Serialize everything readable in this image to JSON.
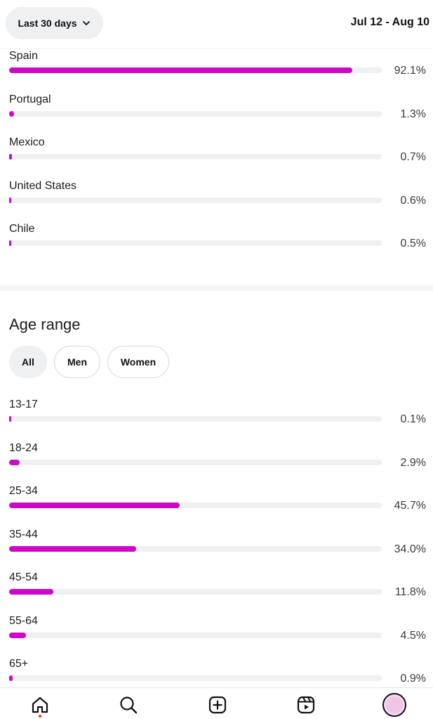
{
  "header": {
    "range_label": "Last 30 days",
    "date_range": "Jul 12 - Aug 10"
  },
  "countries": [
    {
      "label": "Spain",
      "value": "92.1%",
      "fraction": 0.921
    },
    {
      "label": "Portugal",
      "value": "1.3%",
      "fraction": 0.013
    },
    {
      "label": "Mexico",
      "value": "0.7%",
      "fraction": 0.007
    },
    {
      "label": "United States",
      "value": "0.6%",
      "fraction": 0.006
    },
    {
      "label": "Chile",
      "value": "0.5%",
      "fraction": 0.005
    }
  ],
  "age_section": {
    "title": "Age range",
    "filters": [
      "All",
      "Men",
      "Women"
    ],
    "selected_filter": "All"
  },
  "ages": [
    {
      "label": "13-17",
      "value": "0.1%",
      "fraction": 0.001
    },
    {
      "label": "18-24",
      "value": "2.9%",
      "fraction": 0.029
    },
    {
      "label": "25-34",
      "value": "45.7%",
      "fraction": 0.457
    },
    {
      "label": "35-44",
      "value": "34.0%",
      "fraction": 0.34
    },
    {
      "label": "45-54",
      "value": "11.8%",
      "fraction": 0.118
    },
    {
      "label": "55-64",
      "value": "4.5%",
      "fraction": 0.045
    },
    {
      "label": "65+",
      "value": "0.9%",
      "fraction": 0.009
    }
  ],
  "nav": {
    "items": [
      "home-icon",
      "search-icon",
      "create-icon",
      "reels-icon",
      "profile-avatar"
    ]
  },
  "colors": {
    "bar_fill": "#d007c6",
    "bar_track": "#eff0f2",
    "notification_dot": "#ff3040"
  }
}
